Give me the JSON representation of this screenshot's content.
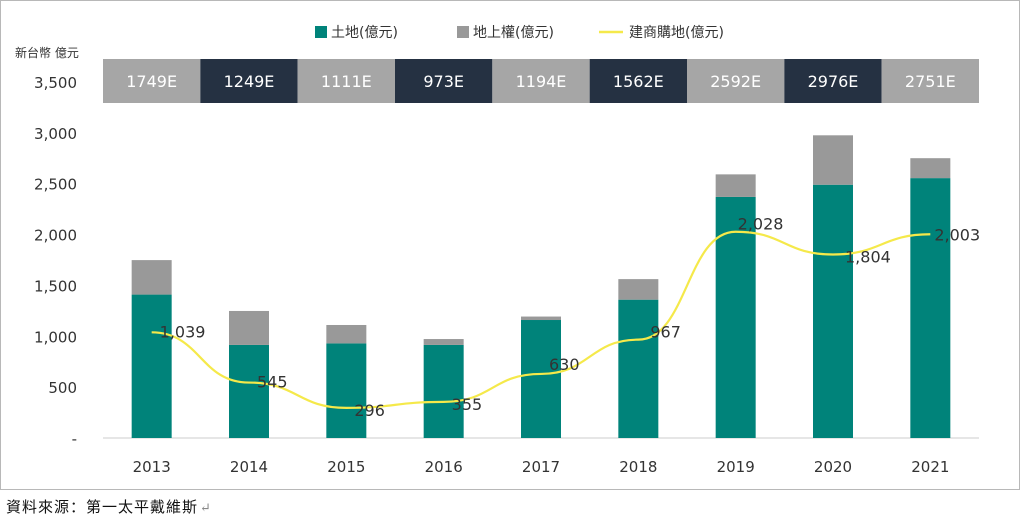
{
  "chart_data": {
    "type": "bar",
    "unit_label": "新台幣 億元",
    "categories": [
      "2013",
      "2014",
      "2015",
      "2016",
      "2017",
      "2018",
      "2019",
      "2020",
      "2021"
    ],
    "series": [
      {
        "name": "土地(億元)",
        "kind": "bar",
        "stack": "total",
        "color": "#00837a",
        "values": [
          1410,
          915,
          930,
          915,
          1160,
          1360,
          2370,
          2490,
          2555
        ]
      },
      {
        "name": "地上權(億元)",
        "kind": "bar",
        "stack": "total",
        "color": "#999999",
        "values": [
          339,
          334,
          181,
          58,
          34,
          202,
          222,
          486,
          196
        ]
      },
      {
        "name": "建商購地(億元)",
        "kind": "line",
        "color": "#f5e94a",
        "values": [
          1039,
          545,
          296,
          355,
          630,
          967,
          2028,
          1804,
          2003
        ],
        "labels": [
          "1,039",
          "545",
          "296",
          "355",
          "630",
          "967",
          "2,028",
          "1,804",
          "2,003"
        ]
      }
    ],
    "totals_row": {
      "labels": [
        "1749E",
        "1249E",
        "1111E",
        "973E",
        "1194E",
        "1562E",
        "2592E",
        "2976E",
        "2751E"
      ],
      "styles": [
        "light",
        "dark",
        "light",
        "dark",
        "light",
        "dark",
        "light",
        "dark",
        "light"
      ]
    },
    "y_ticks": [
      {
        "value": 0,
        "label": "-"
      },
      {
        "value": 500,
        "label": "500"
      },
      {
        "value": 1000,
        "label": "1,000"
      },
      {
        "value": 1500,
        "label": "1,500"
      },
      {
        "value": 2000,
        "label": "2,000"
      },
      {
        "value": 2500,
        "label": "2,500"
      },
      {
        "value": 3000,
        "label": "3,000"
      },
      {
        "value": 3500,
        "label": "3,500"
      }
    ],
    "ylim": [
      0,
      3500
    ],
    "grid": false,
    "legend_position": "top"
  },
  "source_note": "資料來源：第一太平戴維斯",
  "return_mark": "↵",
  "colors": {
    "light_box": "#a6a6a6",
    "dark_box": "#253142",
    "axis": "#cccccc"
  }
}
